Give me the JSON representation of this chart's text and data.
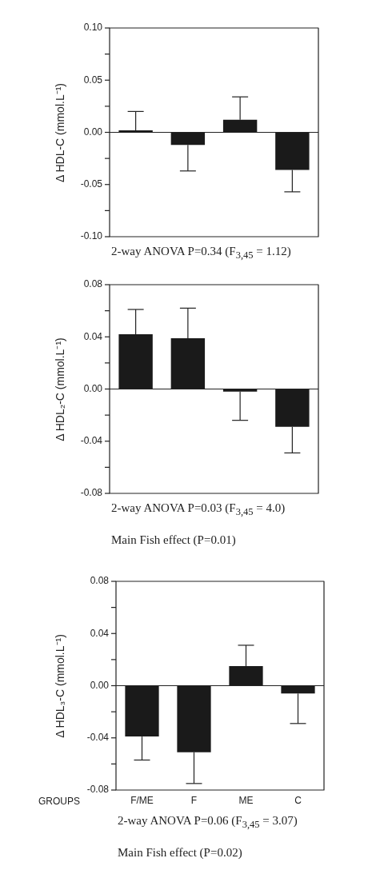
{
  "chart_data": [
    {
      "type": "bar",
      "ylabel": "Δ HDL-C (mmol.L⁻¹)",
      "categories": [
        null,
        null,
        null,
        null
      ],
      "values": [
        0.002,
        -0.012,
        0.012,
        -0.036
      ],
      "color": "#1a1a1a",
      "errors": [
        [
          0.002,
          0.02
        ],
        [
          -0.037,
          -0.012
        ],
        [
          0.012,
          0.034
        ],
        [
          -0.057,
          -0.036
        ]
      ],
      "ylim": [
        -0.1,
        0.1
      ],
      "yticks": [
        {
          "value": -0.1,
          "label": "-0.10"
        },
        {
          "value": -0.075,
          "label": null
        },
        {
          "value": -0.05,
          "label": "-0.05"
        },
        {
          "value": -0.025,
          "label": null
        },
        {
          "value": 0,
          "label": "0.00"
        },
        {
          "value": 0.025,
          "label": null
        },
        {
          "value": 0.05,
          "label": "0.05"
        },
        {
          "value": 0.075,
          "label": null
        },
        {
          "value": 0.1,
          "label": "0.10"
        }
      ],
      "tick_labels": "y",
      "grid": false,
      "legend": false,
      "ref_lines": [
        {
          "axis": "y",
          "value": 0
        }
      ],
      "annotations": [
        "2-way ANOVA P=0.34  (F$_{3,45}$ = 1.12)"
      ]
    },
    {
      "type": "bar",
      "ylabel": "Δ HDL₂-C (mmol.L⁻¹)",
      "categories": [
        null,
        null,
        null,
        null
      ],
      "values": [
        0.042,
        0.039,
        -0.002,
        -0.029
      ],
      "color": "#1a1a1a",
      "errors": [
        [
          0.042,
          0.061
        ],
        [
          0.039,
          0.062
        ],
        [
          -0.024,
          -0.002
        ],
        [
          -0.049,
          -0.029
        ]
      ],
      "ylim": [
        -0.08,
        0.08
      ],
      "yticks": [
        {
          "value": -0.08,
          "label": "-0.08"
        },
        {
          "value": -0.06,
          "label": null
        },
        {
          "value": -0.04,
          "label": "-0.04"
        },
        {
          "value": -0.02,
          "label": null
        },
        {
          "value": 0,
          "label": "0.00"
        },
        {
          "value": 0.02,
          "label": null
        },
        {
          "value": 0.04,
          "label": "0.04"
        },
        {
          "value": 0.06,
          "label": null
        },
        {
          "value": 0.08,
          "label": "0.08"
        }
      ],
      "tick_labels": "y",
      "grid": false,
      "legend": false,
      "ref_lines": [
        {
          "axis": "y",
          "value": 0
        }
      ],
      "annotations": [
        "2-way ANOVA P=0.03 (F$_{3,45}$ = 4.0)",
        "Main Fish effect (P=0.01)"
      ]
    },
    {
      "type": "bar",
      "ylabel": "Δ HDL₃-C (mmol.L⁻¹)",
      "xlabel": "GROUPS",
      "categories": [
        "F/ME",
        "F",
        "ME",
        "C"
      ],
      "values": [
        -0.039,
        -0.051,
        0.015,
        -0.006
      ],
      "color": "#1a1a1a",
      "errors": [
        [
          -0.057,
          -0.039
        ],
        [
          -0.075,
          -0.051
        ],
        [
          0.015,
          0.031
        ],
        [
          -0.029,
          -0.006
        ]
      ],
      "ylim": [
        -0.08,
        0.08
      ],
      "yticks": [
        {
          "value": -0.08,
          "label": "-0.08"
        },
        {
          "value": -0.06,
          "label": null
        },
        {
          "value": -0.04,
          "label": "-0.04"
        },
        {
          "value": -0.02,
          "label": null
        },
        {
          "value": 0,
          "label": "0.00"
        },
        {
          "value": 0.02,
          "label": null
        },
        {
          "value": 0.04,
          "label": "0.04"
        },
        {
          "value": 0.06,
          "label": null
        },
        {
          "value": 0.08,
          "label": "0.08"
        }
      ],
      "grid": false,
      "legend": false,
      "ref_lines": [
        {
          "axis": "y",
          "value": 0
        }
      ],
      "annotations": [
        "2-way ANOVA P=0.06  (F$_{3,45}$ = 3.07)",
        "Main Fish effect (P=0.02)"
      ]
    }
  ]
}
